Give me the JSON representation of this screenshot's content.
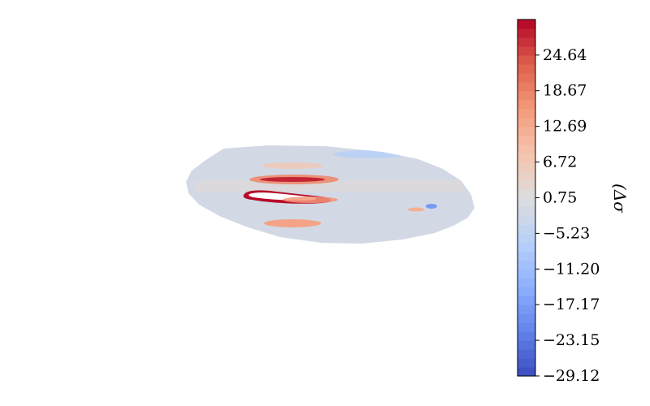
{
  "chart_data": {
    "type": "heatmap",
    "title": "",
    "colormap": "coolwarm",
    "colorbar": {
      "label": "(Δσ",
      "vmin": -29.12,
      "vmax": 30.6,
      "levels": 40,
      "ticks": [
        {
          "value": 24.64,
          "label": "24.64"
        },
        {
          "value": 18.67,
          "label": "18.67"
        },
        {
          "value": 12.69,
          "label": "12.69"
        },
        {
          "value": 6.72,
          "label": "6.72"
        },
        {
          "value": 0.75,
          "label": "0.75"
        },
        {
          "value": -5.23,
          "label": "−5.23"
        },
        {
          "value": -11.2,
          "label": "−11.20"
        },
        {
          "value": -17.17,
          "label": "−17.17"
        },
        {
          "value": -23.15,
          "label": "−23.15"
        },
        {
          "value": -29.12,
          "label": "−29.12"
        }
      ]
    },
    "field": {
      "background_value": -1.5,
      "features": [
        {
          "name": "upper stripe",
          "value": 18
        },
        {
          "name": "upper core",
          "value": 28
        },
        {
          "name": "middle hook",
          "value": 30
        },
        {
          "name": "middle stripe",
          "value": 16
        },
        {
          "name": "lower stripe",
          "value": 14
        },
        {
          "name": "blue spot",
          "value": -18
        },
        {
          "name": "light blue patch",
          "value": -7
        },
        {
          "name": "orange spot",
          "value": 12
        }
      ]
    }
  }
}
